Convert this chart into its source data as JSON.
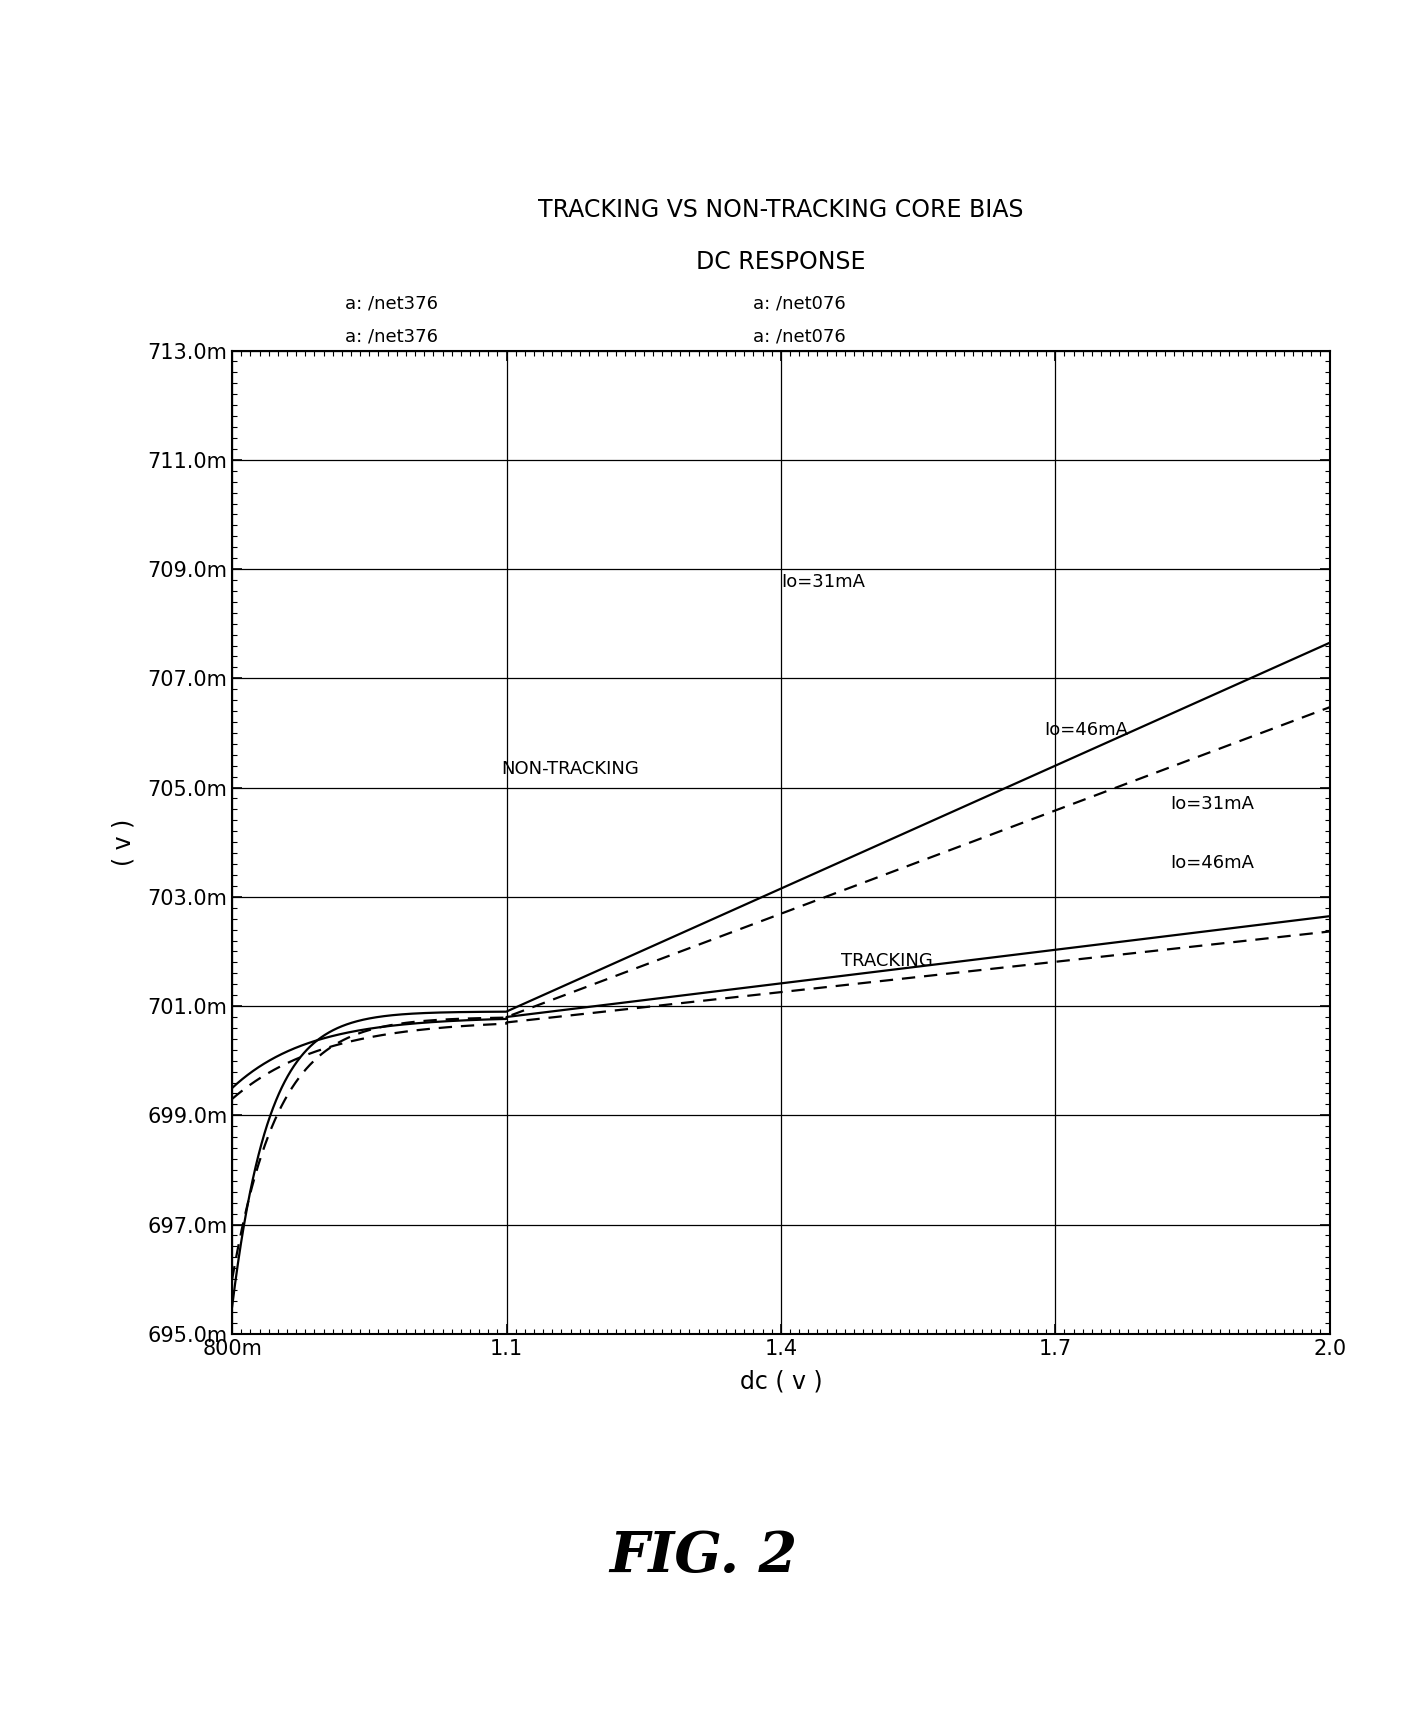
{
  "title_line1": "TRACKING VS NON-TRACKING CORE BIAS",
  "title_line2": "DC RESPONSE",
  "xlabel": "dc ( v )",
  "ylabel": "( v )",
  "xlim": [
    0.8,
    2.0
  ],
  "ylim": [
    0.695,
    0.713
  ],
  "xticks": [
    0.8,
    1.1,
    1.4,
    1.7,
    2.0
  ],
  "xticklabels": [
    "800m",
    "1.1",
    "1.4",
    "1.7",
    "2.0"
  ],
  "yticks": [
    0.695,
    0.697,
    0.699,
    0.701,
    0.703,
    0.705,
    0.707,
    0.709,
    0.711,
    0.713
  ],
  "yticklabels": [
    "695.0m",
    "697.0m",
    "699.0m",
    "701.0m",
    "703.0m",
    "705.0m",
    "707.0m",
    "709.0m",
    "711.0m",
    "713.0m"
  ],
  "legend_left_line1": "a: /net376",
  "legend_left_line2": "a: /net376",
  "legend_right_line1": "a: /net076",
  "legend_right_line2": "a: /net076",
  "fig_label": "FIG. 2",
  "background_color": "#ffffff",
  "line_color": "#000000",
  "non_tracking_label": "NON-TRACKING",
  "tracking_label": "TRACKING",
  "io31_nt_label": "Io=31mA",
  "io46_nt_label": "Io=46mA",
  "io31_t_label": "Io=31mA",
  "io46_t_label": "Io=46mA"
}
